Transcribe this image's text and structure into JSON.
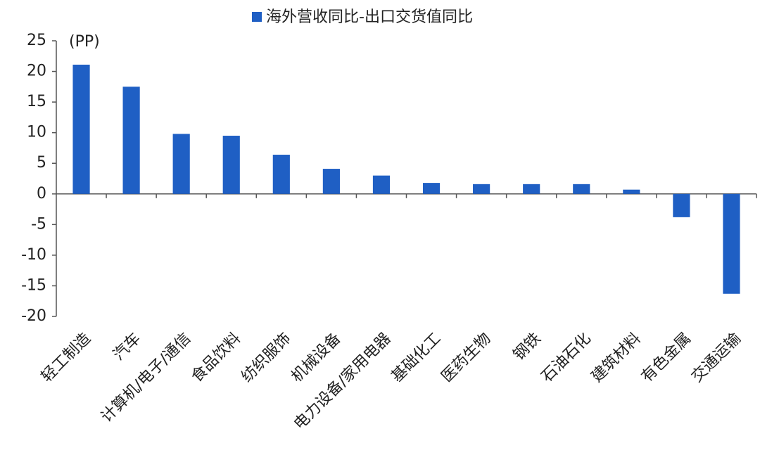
{
  "chart_data": {
    "type": "bar",
    "y_label": "(PP)",
    "series": [
      {
        "name": "海外营收同比-出口交货值同比",
        "color": "#1f5fc4",
        "values": [
          21.1,
          17.5,
          9.8,
          9.5,
          6.4,
          4.1,
          3.0,
          1.8,
          1.6,
          1.6,
          1.6,
          0.7,
          -3.8,
          -16.3
        ]
      }
    ],
    "categories": [
      "轻工制造",
      "汽车",
      "计算机/电子/通信",
      "食品饮料",
      "纺织服饰",
      "机械设备",
      "电力设备/家用电器",
      "基础化工",
      "医药生物",
      "钢铁",
      "石油石化",
      "建筑材料",
      "有色金属",
      "交通运输"
    ],
    "ylim": [
      -20,
      25
    ],
    "yticks": [
      -20,
      -15,
      -10,
      -5,
      0,
      5,
      10,
      15,
      20,
      25
    ]
  }
}
